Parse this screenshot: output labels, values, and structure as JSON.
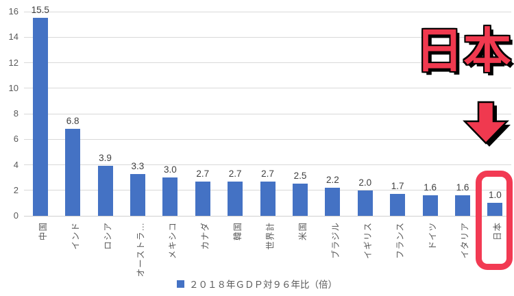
{
  "chart_data": {
    "type": "bar",
    "title": "",
    "xlabel": "",
    "ylabel": "",
    "categories": [
      "中国",
      "インド",
      "ロシア",
      "オーストラ…",
      "メキシコ",
      "カナダ",
      "韓国",
      "世界計",
      "米国",
      "ブラジル",
      "イギリス",
      "フランス",
      "ドイツ",
      "イタリア",
      "日本"
    ],
    "values": [
      15.5,
      6.8,
      3.9,
      3.3,
      3.0,
      2.7,
      2.7,
      2.7,
      2.5,
      2.2,
      2.0,
      1.7,
      1.6,
      1.6,
      1.0
    ],
    "value_labels": [
      "15.5",
      "6.8",
      "3.9",
      "3.3",
      "3.0",
      "2.7",
      "2.7",
      "2.7",
      "2.5",
      "2.2",
      "2.0",
      "1.7",
      "1.6",
      "1.6",
      "1.0"
    ],
    "ylim": [
      0,
      16
    ],
    "yticks": [
      0,
      2,
      4,
      6,
      8,
      10,
      12,
      14,
      16
    ],
    "grid": true,
    "bar_color": "#4472c4",
    "legend": {
      "label": "２０１８年ＧＤＰ対９６年比（倍）",
      "position": "bottom",
      "marker_color": "#4472c4"
    }
  },
  "annotations": {
    "highlight_label": "日本",
    "highlighted_category": "日本",
    "highlighted_value": "1.0",
    "arrow_icon": "down-arrow",
    "red_color": "#f23a53",
    "outline_color": "#000000"
  },
  "colors": {
    "background": "#ffffff",
    "bar": "#4472c4",
    "gridline": "#d9d9d9",
    "axis_text": "#595959",
    "value_text": "#404040",
    "annotation_red": "#f23a53"
  }
}
